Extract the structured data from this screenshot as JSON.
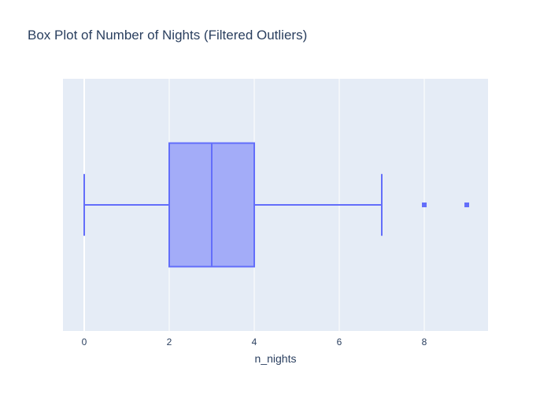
{
  "chart_data": {
    "type": "box",
    "title": "Box Plot of Number of Nights (Filtered Outliers)",
    "xlabel": "n_nights",
    "ylabel": "",
    "xlim": [
      -0.5,
      9.5
    ],
    "x_ticks": [
      0,
      2,
      4,
      6,
      8
    ],
    "x_tick_labels": [
      "0",
      "2",
      "4",
      "6",
      "8"
    ],
    "grid": true,
    "orientation": "horizontal",
    "box": {
      "min": 0,
      "q1": 2,
      "median": 3,
      "q3": 4,
      "max": 7,
      "outliers": [
        8,
        9
      ]
    },
    "colors": {
      "box_line": "#636efa",
      "box_fill": "#a3acf8",
      "plot_bg": "#e5ecf6",
      "grid": "#ffffff",
      "text": "#2a3f5f"
    }
  }
}
